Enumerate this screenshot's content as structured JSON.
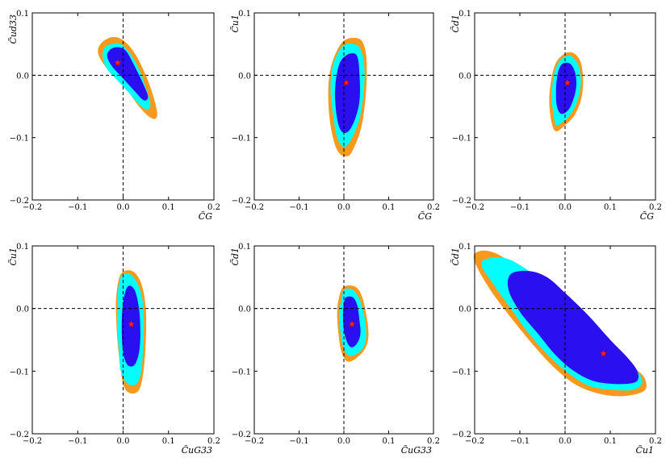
{
  "chart_data": [
    {
      "type": "contour",
      "xlabel": "C̃G",
      "ylabel": "C̃ud33",
      "xlim": [
        -0.2,
        0.2
      ],
      "ylim": [
        -0.2,
        0.1
      ],
      "xticks": [
        "−0.2",
        "−0.1",
        "0.0",
        "0.1",
        "0.2"
      ],
      "yticks": [
        "−0.2",
        "−0.1",
        "0.0",
        "0.1"
      ],
      "best_fit": {
        "x": -0.012,
        "y": 0.02
      },
      "contours": {
        "outer": [
          [
            -0.05,
            0.05
          ],
          [
            -0.03,
            0.06
          ],
          [
            -0.01,
            0.06
          ],
          [
            0.01,
            0.05
          ],
          [
            0.03,
            0.03
          ],
          [
            0.05,
            0.0
          ],
          [
            0.065,
            -0.03
          ],
          [
            0.075,
            -0.06
          ],
          [
            0.07,
            -0.07
          ],
          [
            0.055,
            -0.065
          ],
          [
            0.035,
            -0.05
          ],
          [
            0.01,
            -0.025
          ],
          [
            -0.015,
            -0.005
          ],
          [
            -0.04,
            0.015
          ],
          [
            -0.055,
            0.035
          ]
        ],
        "mid": [
          [
            -0.04,
            0.045
          ],
          [
            -0.025,
            0.05
          ],
          [
            -0.005,
            0.05
          ],
          [
            0.015,
            0.035
          ],
          [
            0.035,
            0.01
          ],
          [
            0.05,
            -0.02
          ],
          [
            0.06,
            -0.045
          ],
          [
            0.055,
            -0.055
          ],
          [
            0.04,
            -0.05
          ],
          [
            0.015,
            -0.03
          ],
          [
            -0.01,
            -0.01
          ],
          [
            -0.035,
            0.01
          ],
          [
            -0.045,
            0.03
          ]
        ],
        "inner": [
          [
            -0.03,
            0.04
          ],
          [
            -0.015,
            0.045
          ],
          [
            0.005,
            0.04
          ],
          [
            0.025,
            0.015
          ],
          [
            0.045,
            -0.015
          ],
          [
            0.055,
            -0.035
          ],
          [
            0.045,
            -0.04
          ],
          [
            0.025,
            -0.025
          ],
          [
            0.0,
            -0.005
          ],
          [
            -0.025,
            0.015
          ],
          [
            -0.035,
            0.03
          ]
        ]
      }
    },
    {
      "type": "contour",
      "xlabel": "C̃G",
      "ylabel": "C̃u1",
      "xlim": [
        -0.2,
        0.2
      ],
      "ylim": [
        -0.2,
        0.1
      ],
      "xticks": [
        "−0.2",
        "−0.1",
        "0.0",
        "0.1",
        "0.2"
      ],
      "yticks": [
        "−0.2",
        "−0.1",
        "0.0",
        "0.1"
      ],
      "best_fit": {
        "x": 0.005,
        "y": -0.012
      },
      "contours": {
        "outer": [
          [
            0.02,
            0.06
          ],
          [
            0.04,
            0.055
          ],
          [
            0.05,
            0.03
          ],
          [
            0.05,
            -0.02
          ],
          [
            0.04,
            -0.08
          ],
          [
            0.02,
            -0.12
          ],
          [
            0.005,
            -0.13
          ],
          [
            -0.015,
            -0.12
          ],
          [
            -0.03,
            -0.08
          ],
          [
            -0.035,
            -0.03
          ],
          [
            -0.03,
            0.01
          ],
          [
            -0.015,
            0.04
          ],
          [
            0.0,
            0.055
          ]
        ],
        "mid": [
          [
            0.02,
            0.05
          ],
          [
            0.035,
            0.045
          ],
          [
            0.045,
            0.02
          ],
          [
            0.045,
            -0.02
          ],
          [
            0.035,
            -0.07
          ],
          [
            0.015,
            -0.105
          ],
          [
            0.0,
            -0.115
          ],
          [
            -0.015,
            -0.1
          ],
          [
            -0.025,
            -0.06
          ],
          [
            -0.03,
            -0.02
          ],
          [
            -0.025,
            0.015
          ],
          [
            -0.01,
            0.04
          ],
          [
            0.005,
            0.05
          ]
        ],
        "inner": [
          [
            0.015,
            0.035
          ],
          [
            0.03,
            0.03
          ],
          [
            0.035,
            0.0
          ],
          [
            0.035,
            -0.04
          ],
          [
            0.025,
            -0.07
          ],
          [
            0.01,
            -0.09
          ],
          [
            -0.005,
            -0.09
          ],
          [
            -0.015,
            -0.07
          ],
          [
            -0.02,
            -0.03
          ],
          [
            -0.015,
            0.005
          ],
          [
            -0.005,
            0.025
          ]
        ]
      }
    },
    {
      "type": "contour",
      "xlabel": "C̃G",
      "ylabel": "C̃d1",
      "xlim": [
        -0.2,
        0.2
      ],
      "ylim": [
        -0.2,
        0.1
      ],
      "xticks": [
        "−0.2",
        "−0.1",
        "0.0",
        "0.1",
        "0.2"
      ],
      "yticks": [
        "−0.2",
        "−0.1",
        "0.0",
        "0.1"
      ],
      "best_fit": {
        "x": 0.005,
        "y": -0.012
      },
      "contours": {
        "outer": [
          [
            0.0,
            0.035
          ],
          [
            0.02,
            0.035
          ],
          [
            0.035,
            0.02
          ],
          [
            0.04,
            -0.01
          ],
          [
            0.035,
            -0.04
          ],
          [
            0.02,
            -0.065
          ],
          [
            0.0,
            -0.08
          ],
          [
            -0.02,
            -0.09
          ],
          [
            -0.03,
            -0.075
          ],
          [
            -0.035,
            -0.04
          ],
          [
            -0.03,
            -0.005
          ],
          [
            -0.02,
            0.02
          ]
        ],
        "mid": [
          [
            0.0,
            0.03
          ],
          [
            0.015,
            0.03
          ],
          [
            0.03,
            0.015
          ],
          [
            0.035,
            -0.01
          ],
          [
            0.03,
            -0.035
          ],
          [
            0.015,
            -0.06
          ],
          [
            -0.005,
            -0.075
          ],
          [
            -0.02,
            -0.08
          ],
          [
            -0.025,
            -0.065
          ],
          [
            -0.03,
            -0.035
          ],
          [
            -0.025,
            0.0
          ],
          [
            -0.015,
            0.02
          ]
        ],
        "inner": [
          [
            0.0,
            0.02
          ],
          [
            0.012,
            0.018
          ],
          [
            0.022,
            0.005
          ],
          [
            0.025,
            -0.015
          ],
          [
            0.02,
            -0.035
          ],
          [
            0.008,
            -0.055
          ],
          [
            -0.008,
            -0.062
          ],
          [
            -0.018,
            -0.05
          ],
          [
            -0.02,
            -0.025
          ],
          [
            -0.017,
            0.0
          ],
          [
            -0.01,
            0.015
          ]
        ]
      }
    },
    {
      "type": "contour",
      "xlabel": "C̃uG33",
      "ylabel": "C̃u1",
      "xlim": [
        -0.2,
        0.2
      ],
      "ylim": [
        -0.2,
        0.1
      ],
      "xticks": [
        "−0.2",
        "−0.1",
        "0.0",
        "0.1",
        "0.2"
      ],
      "yticks": [
        "−0.2",
        "−0.1",
        "0.0",
        "0.1"
      ],
      "best_fit": {
        "x": 0.018,
        "y": -0.025
      },
      "contours": {
        "outer": [
          [
            -0.005,
            0.055
          ],
          [
            0.02,
            0.06
          ],
          [
            0.04,
            0.04
          ],
          [
            0.05,
            0.0
          ],
          [
            0.05,
            -0.05
          ],
          [
            0.045,
            -0.1
          ],
          [
            0.035,
            -0.13
          ],
          [
            0.015,
            -0.135
          ],
          [
            0.0,
            -0.12
          ],
          [
            -0.01,
            -0.07
          ],
          [
            -0.015,
            -0.02
          ],
          [
            -0.015,
            0.02
          ]
        ],
        "mid": [
          [
            -0.005,
            0.05
          ],
          [
            0.015,
            0.055
          ],
          [
            0.035,
            0.035
          ],
          [
            0.045,
            0.0
          ],
          [
            0.045,
            -0.05
          ],
          [
            0.04,
            -0.1
          ],
          [
            0.03,
            -0.12
          ],
          [
            0.01,
            -0.12
          ],
          [
            -0.005,
            -0.1
          ],
          [
            -0.01,
            -0.06
          ],
          [
            -0.013,
            -0.02
          ],
          [
            -0.012,
            0.02
          ]
        ],
        "inner": [
          [
            0.01,
            0.035
          ],
          [
            0.025,
            0.03
          ],
          [
            0.035,
            0.0
          ],
          [
            0.038,
            -0.04
          ],
          [
            0.035,
            -0.07
          ],
          [
            0.025,
            -0.09
          ],
          [
            0.01,
            -0.09
          ],
          [
            0.0,
            -0.07
          ],
          [
            -0.003,
            -0.03
          ],
          [
            0.0,
            0.01
          ]
        ]
      }
    },
    {
      "type": "contour",
      "xlabel": "C̃uG33",
      "ylabel": "C̃d1",
      "xlim": [
        -0.2,
        0.2
      ],
      "ylim": [
        -0.2,
        0.1
      ],
      "xticks": [
        "−0.2",
        "−0.1",
        "0.0",
        "0.1",
        "0.2"
      ],
      "yticks": [
        "−0.2",
        "−0.1",
        "0.0",
        "0.1"
      ],
      "best_fit": {
        "x": 0.018,
        "y": -0.025
      },
      "contours": {
        "outer": [
          [
            0.0,
            0.035
          ],
          [
            0.025,
            0.035
          ],
          [
            0.04,
            0.02
          ],
          [
            0.05,
            -0.01
          ],
          [
            0.055,
            -0.04
          ],
          [
            0.05,
            -0.06
          ],
          [
            0.035,
            -0.075
          ],
          [
            0.01,
            -0.085
          ],
          [
            -0.005,
            -0.07
          ],
          [
            -0.012,
            -0.04
          ],
          [
            -0.015,
            -0.005
          ],
          [
            -0.01,
            0.02
          ]
        ],
        "mid": [
          [
            0.0,
            0.03
          ],
          [
            0.02,
            0.03
          ],
          [
            0.035,
            0.015
          ],
          [
            0.045,
            -0.01
          ],
          [
            0.05,
            -0.04
          ],
          [
            0.045,
            -0.06
          ],
          [
            0.03,
            -0.072
          ],
          [
            0.01,
            -0.075
          ],
          [
            -0.002,
            -0.06
          ],
          [
            -0.008,
            -0.035
          ],
          [
            -0.01,
            -0.005
          ],
          [
            -0.005,
            0.015
          ]
        ],
        "inner": [
          [
            0.005,
            0.018
          ],
          [
            0.02,
            0.018
          ],
          [
            0.03,
            0.005
          ],
          [
            0.035,
            -0.02
          ],
          [
            0.037,
            -0.04
          ],
          [
            0.03,
            -0.055
          ],
          [
            0.018,
            -0.062
          ],
          [
            0.008,
            -0.055
          ],
          [
            0.0,
            -0.035
          ],
          [
            -0.002,
            -0.01
          ],
          [
            0.0,
            0.008
          ]
        ]
      }
    },
    {
      "type": "contour",
      "xlabel": "C̃u1",
      "ylabel": "C̃d1",
      "xlim": [
        -0.2,
        0.2
      ],
      "ylim": [
        -0.2,
        0.1
      ],
      "xticks": [
        "−0.2",
        "−0.1",
        "0.0",
        "0.1",
        "0.2"
      ],
      "yticks": [
        "−0.2",
        "−0.1",
        "0.0",
        "0.1"
      ],
      "best_fit": {
        "x": 0.085,
        "y": -0.072
      },
      "contours": {
        "outer": [
          [
            -0.195,
            0.09
          ],
          [
            -0.16,
            0.09
          ],
          [
            -0.1,
            0.065
          ],
          [
            -0.04,
            0.03
          ],
          [
            0.02,
            -0.01
          ],
          [
            0.08,
            -0.05
          ],
          [
            0.13,
            -0.085
          ],
          [
            0.17,
            -0.105
          ],
          [
            0.18,
            -0.125
          ],
          [
            0.165,
            -0.135
          ],
          [
            0.12,
            -0.14
          ],
          [
            0.07,
            -0.135
          ],
          [
            0.02,
            -0.12
          ],
          [
            -0.03,
            -0.09
          ],
          [
            -0.08,
            -0.05
          ],
          [
            -0.13,
            -0.005
          ],
          [
            -0.17,
            0.035
          ],
          [
            -0.2,
            0.075
          ]
        ],
        "mid": [
          [
            -0.17,
            0.08
          ],
          [
            -0.13,
            0.08
          ],
          [
            -0.08,
            0.06
          ],
          [
            -0.02,
            0.025
          ],
          [
            0.04,
            -0.015
          ],
          [
            0.1,
            -0.055
          ],
          [
            0.14,
            -0.085
          ],
          [
            0.165,
            -0.105
          ],
          [
            0.17,
            -0.12
          ],
          [
            0.15,
            -0.13
          ],
          [
            0.11,
            -0.13
          ],
          [
            0.06,
            -0.125
          ],
          [
            0.02,
            -0.11
          ],
          [
            -0.03,
            -0.08
          ],
          [
            -0.08,
            -0.04
          ],
          [
            -0.12,
            0.0
          ],
          [
            -0.16,
            0.04
          ],
          [
            -0.185,
            0.07
          ]
        ],
        "inner": [
          [
            -0.12,
            0.055
          ],
          [
            -0.08,
            0.06
          ],
          [
            -0.04,
            0.05
          ],
          [
            0.0,
            0.025
          ],
          [
            0.05,
            -0.01
          ],
          [
            0.1,
            -0.05
          ],
          [
            0.14,
            -0.08
          ],
          [
            0.16,
            -0.1
          ],
          [
            0.16,
            -0.115
          ],
          [
            0.14,
            -0.12
          ],
          [
            0.1,
            -0.12
          ],
          [
            0.06,
            -0.115
          ],
          [
            0.02,
            -0.1
          ],
          [
            -0.02,
            -0.075
          ],
          [
            -0.06,
            -0.04
          ],
          [
            -0.1,
            -0.005
          ],
          [
            -0.125,
            0.03
          ]
        ]
      }
    }
  ],
  "colors": {
    "outer": "#f7991c",
    "mid": "#00ffff",
    "inner": "#2a0ff0",
    "star": "#ff2020"
  }
}
